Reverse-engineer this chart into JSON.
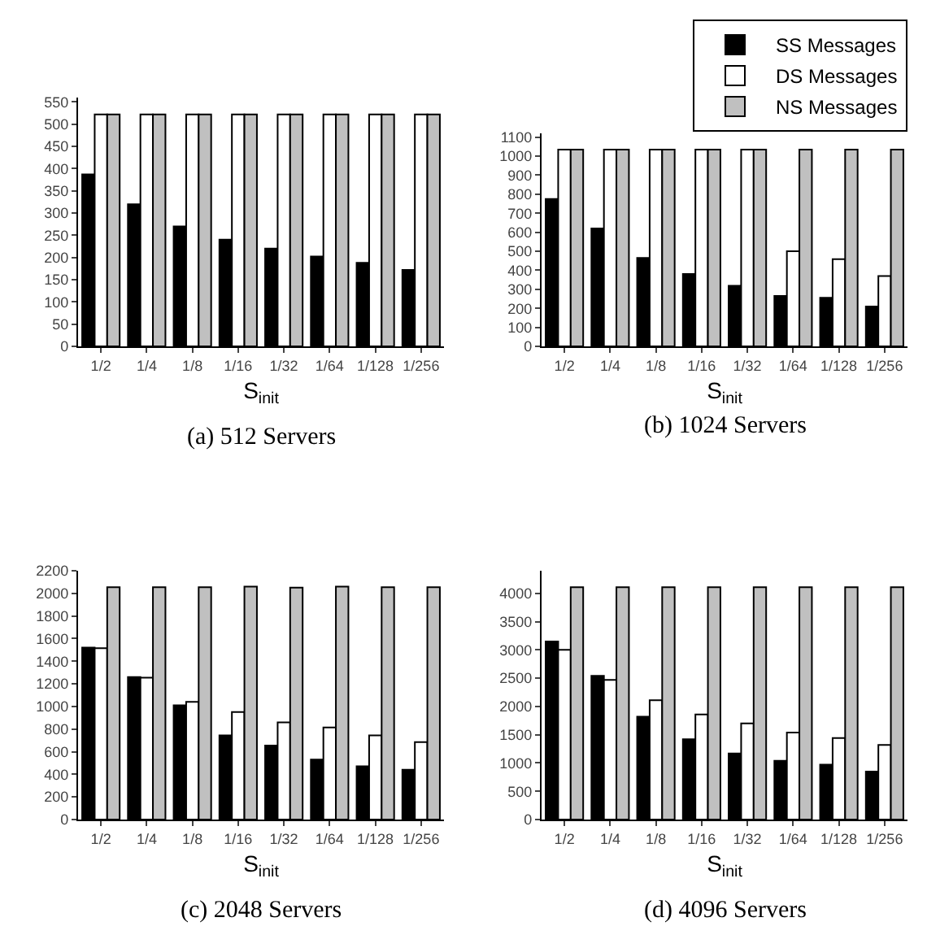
{
  "chart_data": [
    {
      "type": "bar",
      "title": "(a) 512 Servers",
      "xlabel": "S$_{init}$",
      "categories": [
        "1/2",
        "1/4",
        "1/8",
        "1/16",
        "1/32",
        "1/64",
        "1/128",
        "1/256"
      ],
      "ylim": [
        0,
        560
      ],
      "yticks": [
        0,
        50,
        100,
        150,
        200,
        250,
        300,
        350,
        400,
        450,
        500,
        550
      ],
      "grid": false,
      "legend": false,
      "series": [
        {
          "color": "#000000",
          "values": [
            387,
            320,
            270,
            240,
            220,
            202,
            188,
            172
          ]
        },
        {
          "color": "#ffffff",
          "values": [
            522,
            522,
            522,
            522,
            522,
            522,
            522,
            522
          ]
        },
        {
          "color": "#c0c0c0",
          "values": [
            522,
            522,
            522,
            522,
            522,
            522,
            522,
            522
          ]
        }
      ]
    },
    {
      "type": "bar",
      "title": "(b) 1024 Servers",
      "xlabel": "S$_{init}$",
      "categories": [
        "1/2",
        "1/4",
        "1/8",
        "1/16",
        "1/32",
        "1/64",
        "1/128",
        "1/256"
      ],
      "ylim": [
        0,
        1120
      ],
      "yticks": [
        0,
        100,
        200,
        300,
        400,
        500,
        600,
        700,
        800,
        900,
        1000,
        1100
      ],
      "grid": false,
      "legend": "top right",
      "series": [
        {
          "name": "SS Messages",
          "color": "#000000",
          "values": [
            775,
            620,
            465,
            380,
            318,
            265,
            255,
            210
          ]
        },
        {
          "name": "DS Messages",
          "color": "#ffffff",
          "values": [
            1035,
            1035,
            1035,
            1035,
            1035,
            500,
            458,
            370
          ]
        },
        {
          "name": "NS Messages",
          "color": "#c0c0c0",
          "values": [
            1035,
            1035,
            1035,
            1035,
            1035,
            1035,
            1035,
            1035
          ]
        }
      ]
    },
    {
      "type": "bar",
      "title": "(c) 2048 Servers",
      "xlabel": "S$_{init}$",
      "categories": [
        "1/2",
        "1/4",
        "1/8",
        "1/16",
        "1/32",
        "1/64",
        "1/128",
        "1/256"
      ],
      "ylim": [
        0,
        2200
      ],
      "yticks": [
        0,
        200,
        400,
        600,
        800,
        1000,
        1200,
        1400,
        1600,
        1800,
        2000,
        2200
      ],
      "grid": false,
      "legend": false,
      "series": [
        {
          "color": "#000000",
          "values": [
            1520,
            1260,
            1010,
            745,
            655,
            530,
            470,
            440
          ]
        },
        {
          "color": "#ffffff",
          "values": [
            1515,
            1255,
            1040,
            950,
            860,
            815,
            745,
            685
          ]
        },
        {
          "color": "#c0c0c0",
          "values": [
            2055,
            2055,
            2055,
            2060,
            2050,
            2060,
            2055,
            2055
          ]
        }
      ]
    },
    {
      "type": "bar",
      "title": "(d) 4096 Servers",
      "xlabel": "S$_{init}$",
      "categories": [
        "1/2",
        "1/4",
        "1/8",
        "1/16",
        "1/32",
        "1/64",
        "1/128",
        "1/256"
      ],
      "ylim": [
        0,
        4400
      ],
      "yticks": [
        0,
        500,
        1000,
        1500,
        2000,
        2500,
        3000,
        3500,
        4000
      ],
      "grid": false,
      "legend": false,
      "series": [
        {
          "color": "#000000",
          "values": [
            3150,
            2540,
            1820,
            1420,
            1170,
            1040,
            970,
            850
          ]
        },
        {
          "color": "#ffffff",
          "values": [
            3000,
            2470,
            2110,
            1860,
            1700,
            1540,
            1440,
            1320
          ]
        },
        {
          "color": "#c0c0c0",
          "values": [
            4110,
            4110,
            4110,
            4110,
            4110,
            4110,
            4110,
            4110
          ]
        }
      ]
    }
  ]
}
